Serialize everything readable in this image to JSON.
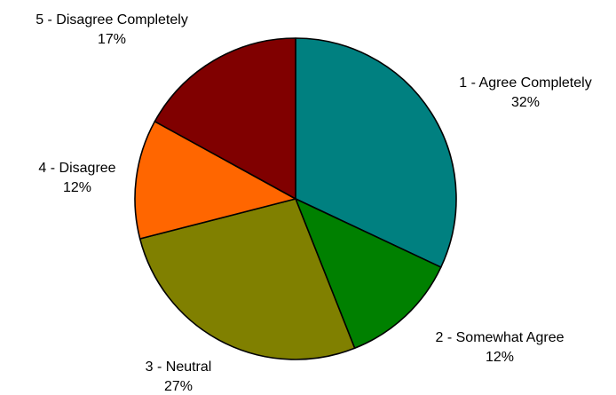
{
  "chart_data": {
    "type": "pie",
    "title": "",
    "start_angle_deg": 0,
    "direction": "clockwise",
    "slices": [
      {
        "label": "1 - Agree Completely",
        "value": 32,
        "value_label": "32%",
        "color": "#008080"
      },
      {
        "label": "2 - Somewhat Agree",
        "value": 12,
        "value_label": "12%",
        "color": "#008000"
      },
      {
        "label": "3 - Neutral",
        "value": 27,
        "value_label": "27%",
        "color": "#808000"
      },
      {
        "label": "4 - Disagree",
        "value": 12,
        "value_label": "12%",
        "color": "#FF6600"
      },
      {
        "label": "5 - Disagree Completely",
        "value": 17,
        "value_label": "17%",
        "color": "#800000"
      }
    ]
  }
}
